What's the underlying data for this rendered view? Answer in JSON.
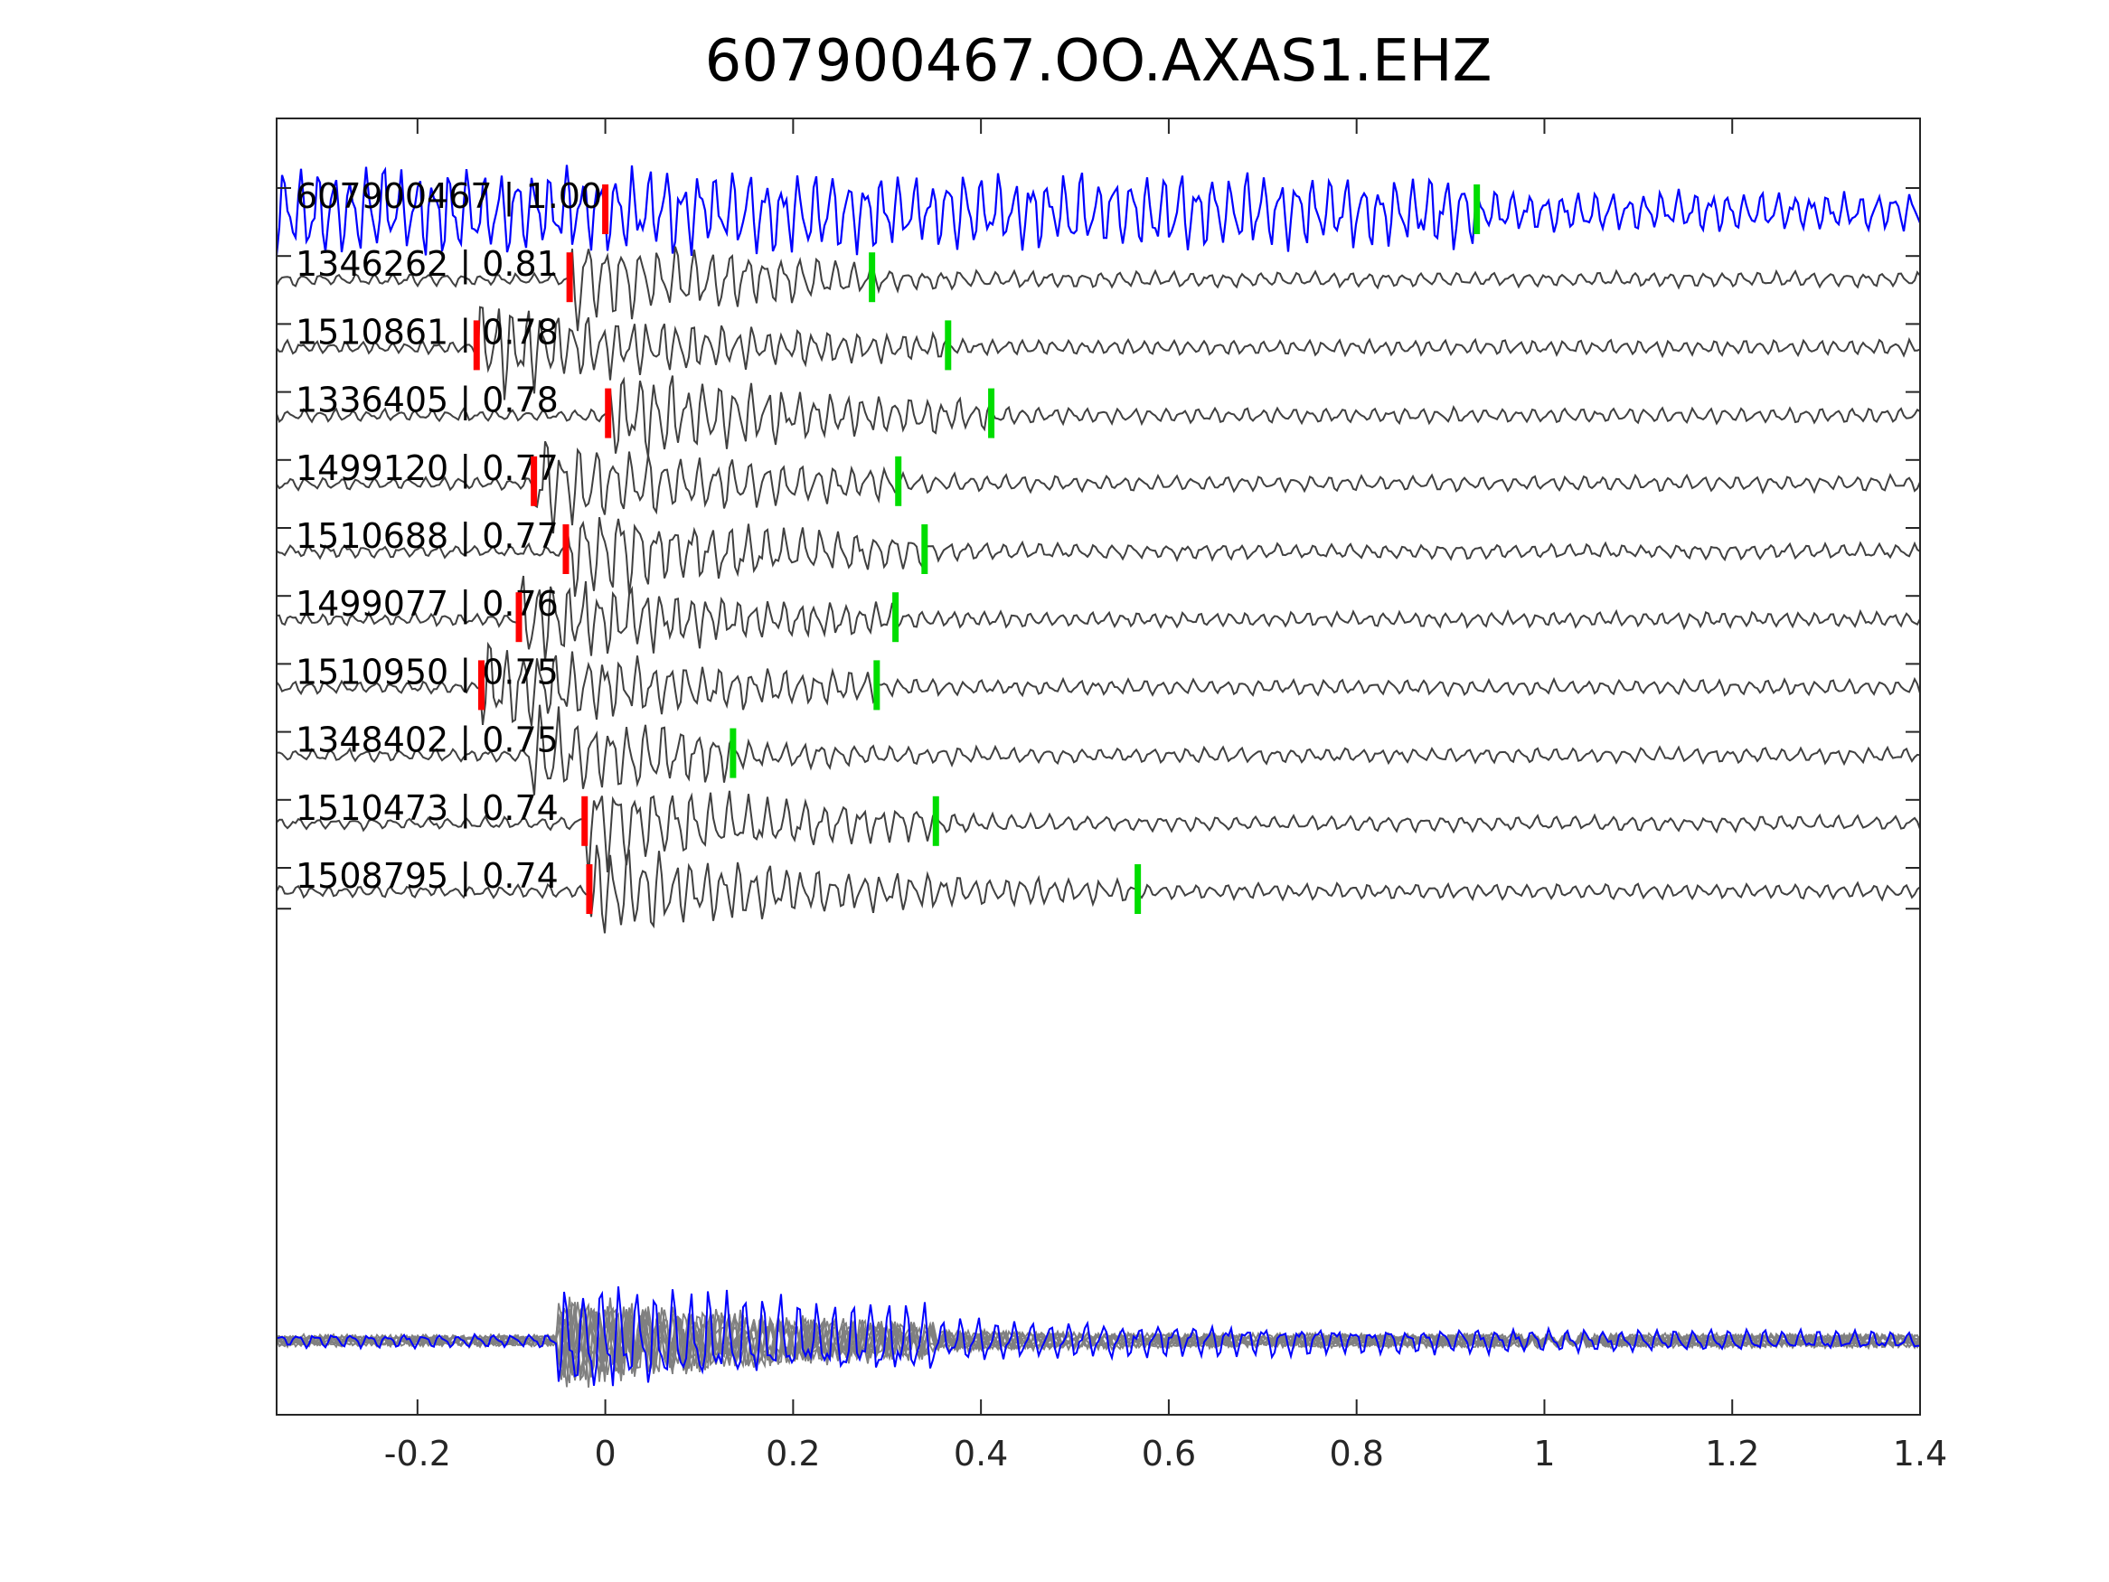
{
  "chart_data": {
    "type": "line",
    "title": "607900467.OO.AXAS1.EHZ",
    "xlabel": "",
    "ylabel": "",
    "xlim": [
      -0.35,
      1.4
    ],
    "x_ticks": [
      -0.2,
      0,
      0.2,
      0.4,
      0.6,
      0.8,
      1,
      1.2,
      1.4
    ],
    "x_tick_labels": [
      "-0.2",
      "0",
      "0.2",
      "0.4",
      "0.6",
      "0.8",
      "1",
      "1.2",
      "1.4"
    ],
    "grid": false,
    "legend": "none",
    "colors": {
      "target_trace": "#0000ff",
      "neighbor_trace": "#404040",
      "stack_trace": "#808080",
      "p_pick": "#ff0000",
      "s_pick": "#00dd00",
      "axis": "#262626"
    },
    "series": [
      {
        "label": "607900467 | 1.00",
        "p_pick": 0.0,
        "s_pick": 0.928,
        "highlight": true
      },
      {
        "label": "1346262 | 0.81",
        "p_pick": -0.038,
        "s_pick": 0.284
      },
      {
        "label": "1510861 | 0.78",
        "p_pick": -0.137,
        "s_pick": 0.365
      },
      {
        "label": "1336405 | 0.78",
        "p_pick": 0.003,
        "s_pick": 0.411
      },
      {
        "label": "1499120 | 0.77",
        "p_pick": -0.076,
        "s_pick": 0.312
      },
      {
        "label": "1510688 | 0.77",
        "p_pick": -0.042,
        "s_pick": 0.34
      },
      {
        "label": "1499077 | 0.76",
        "p_pick": -0.092,
        "s_pick": 0.309
      },
      {
        "label": "1510950 | 0.75",
        "p_pick": -0.132,
        "s_pick": 0.289
      },
      {
        "label": "1348402 | 0.75",
        "p_pick": null,
        "s_pick": 0.136
      },
      {
        "label": "1510473 | 0.74",
        "p_pick": -0.022,
        "s_pick": 0.352
      },
      {
        "label": "1508795 | 0.74",
        "p_pick": -0.017,
        "s_pick": 0.567
      }
    ],
    "stack": {
      "name": "overlay",
      "description_shown": false
    }
  }
}
